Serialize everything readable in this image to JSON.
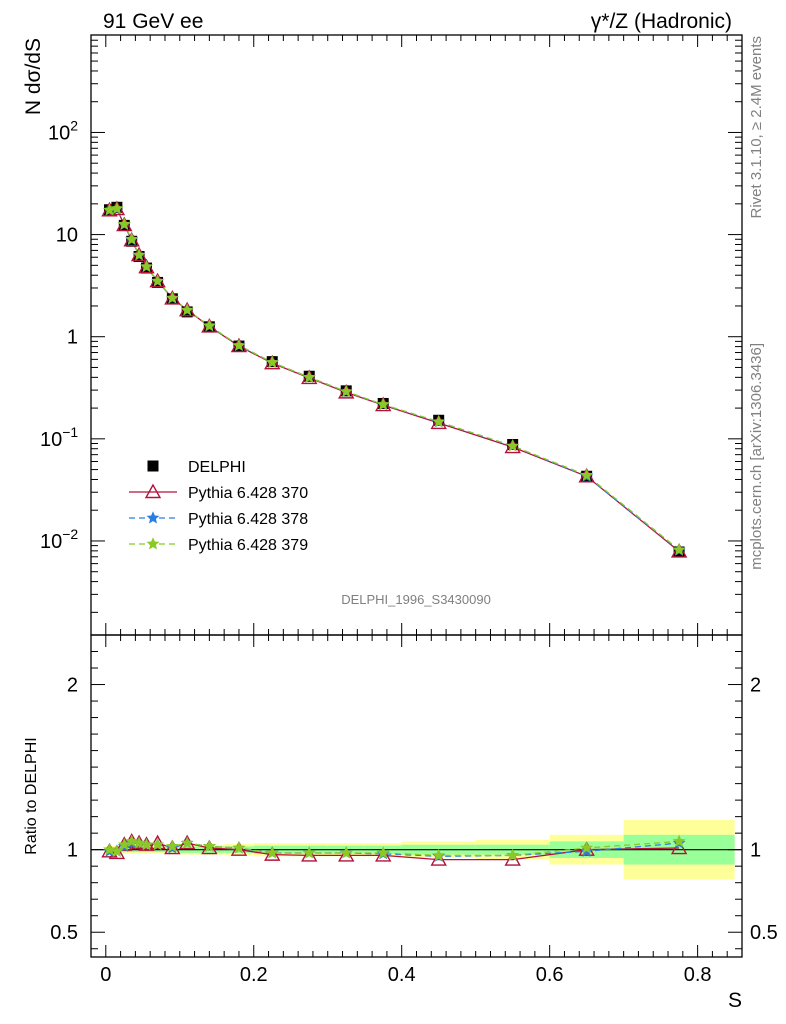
{
  "header": {
    "left": "91 GeV ee",
    "right": "γ*/Z (Hadronic)"
  },
  "side": {
    "rivet": "Rivet 3.1.10, ≥ 2.4M events",
    "mcplots": "mcplots.cern.ch [arXiv:1306.3436]"
  },
  "analysis_label": "DELPHI_1996_S3430090",
  "chart_data": [
    {
      "type": "scatter",
      "ylabel": "N dσ/dS",
      "log_y": true,
      "xlim": [
        -0.02,
        0.86
      ],
      "ylim": [
        0.0012,
        900
      ],
      "y_ticks": [
        {
          "v": 0.01,
          "b": "10",
          "e": "−2"
        },
        {
          "v": 0.1,
          "b": "10",
          "e": "−1"
        },
        {
          "v": 1,
          "b": "1",
          "e": ""
        },
        {
          "v": 10,
          "b": "10",
          "e": ""
        },
        {
          "v": 100,
          "b": "10",
          "e": "2"
        }
      ],
      "legend_position": "lower-left",
      "x": [
        0.005,
        0.015,
        0.025,
        0.035,
        0.045,
        0.055,
        0.07,
        0.09,
        0.11,
        0.14,
        0.18,
        0.225,
        0.275,
        0.325,
        0.375,
        0.45,
        0.55,
        0.65,
        0.775
      ],
      "series": [
        {
          "name": "DELPHI",
          "color": "#000000",
          "marker": "square",
          "values": [
            17.5,
            18.5,
            12.3,
            8.6,
            6.1,
            4.7,
            3.4,
            2.35,
            1.75,
            1.25,
            0.81,
            0.57,
            0.41,
            0.295,
            0.222,
            0.152,
            0.088,
            0.043,
            0.0078
          ]
        },
        {
          "name": "Pythia 6.428 370",
          "color": "#b3103a",
          "marker": "triangle",
          "dash": "solid",
          "values": [
            17.3,
            17.8,
            12.4,
            8.8,
            6.3,
            4.8,
            3.5,
            2.37,
            1.82,
            1.26,
            0.81,
            0.55,
            0.395,
            0.285,
            0.214,
            0.143,
            0.083,
            0.043,
            0.0079
          ]
        },
        {
          "name": "Pythia 6.428 378",
          "color": "#2a7de1",
          "marker": "star",
          "dash": "dashed",
          "values": [
            17.3,
            17.9,
            12.5,
            8.9,
            6.3,
            4.85,
            3.5,
            2.38,
            1.82,
            1.27,
            0.82,
            0.56,
            0.4,
            0.29,
            0.216,
            0.146,
            0.085,
            0.043,
            0.0081
          ]
        },
        {
          "name": "Pythia 6.428 379",
          "color": "#8ac926",
          "marker": "star",
          "dash": "dashed",
          "values": [
            17.4,
            18.0,
            12.6,
            9.0,
            6.3,
            4.85,
            3.5,
            2.39,
            1.82,
            1.28,
            0.82,
            0.56,
            0.4,
            0.29,
            0.217,
            0.147,
            0.085,
            0.044,
            0.0082
          ]
        }
      ]
    },
    {
      "type": "scatter",
      "ylabel": "Ratio to DELPHI",
      "xlabel": "S",
      "xlim": [
        -0.02,
        0.86
      ],
      "ylim": [
        0.35,
        2.3
      ],
      "x_ticks": [
        {
          "v": 0,
          "label": "0"
        },
        {
          "v": 0.2,
          "label": "0.2"
        },
        {
          "v": 0.4,
          "label": "0.4"
        },
        {
          "v": 0.6,
          "label": "0.6"
        },
        {
          "v": 0.8,
          "label": "0.8"
        }
      ],
      "y_ticks": [
        {
          "v": 0.5,
          "label": "0.5"
        },
        {
          "v": 1,
          "label": "1"
        },
        {
          "v": 2,
          "label": "2"
        }
      ],
      "bins": [
        [
          0,
          0.01
        ],
        [
          0.01,
          0.02
        ],
        [
          0.02,
          0.03
        ],
        [
          0.03,
          0.04
        ],
        [
          0.04,
          0.05
        ],
        [
          0.05,
          0.06
        ],
        [
          0.06,
          0.08
        ],
        [
          0.08,
          0.1
        ],
        [
          0.1,
          0.12
        ],
        [
          0.12,
          0.16
        ],
        [
          0.16,
          0.2
        ],
        [
          0.2,
          0.25
        ],
        [
          0.25,
          0.3
        ],
        [
          0.3,
          0.35
        ],
        [
          0.35,
          0.4
        ],
        [
          0.4,
          0.5
        ],
        [
          0.5,
          0.6
        ],
        [
          0.6,
          0.7
        ],
        [
          0.7,
          0.85
        ]
      ],
      "band_stat": [
        0.015,
        0.015,
        0.015,
        0.015,
        0.015,
        0.015,
        0.015,
        0.015,
        0.02,
        0.02,
        0.02,
        0.025,
        0.025,
        0.025,
        0.025,
        0.03,
        0.03,
        0.05,
        0.09
      ],
      "band_total": [
        0.025,
        0.025,
        0.025,
        0.025,
        0.025,
        0.025,
        0.025,
        0.025,
        0.03,
        0.03,
        0.035,
        0.04,
        0.04,
        0.04,
        0.04,
        0.05,
        0.06,
        0.09,
        0.18
      ],
      "band_colors": {
        "total": "#ffff99",
        "stat": "#99ff99"
      },
      "x": [
        0.005,
        0.015,
        0.025,
        0.035,
        0.045,
        0.055,
        0.07,
        0.09,
        0.11,
        0.14,
        0.18,
        0.225,
        0.275,
        0.325,
        0.375,
        0.45,
        0.55,
        0.65,
        0.775
      ],
      "series": [
        {
          "name": "Pythia 6.428 370",
          "color": "#b3103a",
          "marker": "triangle",
          "dash": "solid",
          "values": [
            0.99,
            0.98,
            1.03,
            1.05,
            1.04,
            1.03,
            1.04,
            1.01,
            1.04,
            1.01,
            1.0,
            0.97,
            0.965,
            0.965,
            0.965,
            0.94,
            0.94,
            1.0,
            1.01
          ]
        },
        {
          "name": "Pythia 6.428 378",
          "color": "#2a7de1",
          "marker": "star",
          "dash": "dashed",
          "values": [
            0.99,
            0.99,
            1.02,
            1.04,
            1.04,
            1.03,
            1.03,
            1.01,
            1.04,
            1.02,
            1.01,
            0.98,
            0.98,
            0.98,
            0.975,
            0.96,
            0.965,
            0.99,
            1.04
          ]
        },
        {
          "name": "Pythia 6.428 379",
          "color": "#8ac926",
          "marker": "star",
          "dash": "dashed",
          "values": [
            1.0,
            0.99,
            1.03,
            1.05,
            1.04,
            1.03,
            1.03,
            1.02,
            1.04,
            1.02,
            1.01,
            0.98,
            0.98,
            0.98,
            0.98,
            0.965,
            0.965,
            1.01,
            1.05
          ]
        }
      ]
    }
  ]
}
